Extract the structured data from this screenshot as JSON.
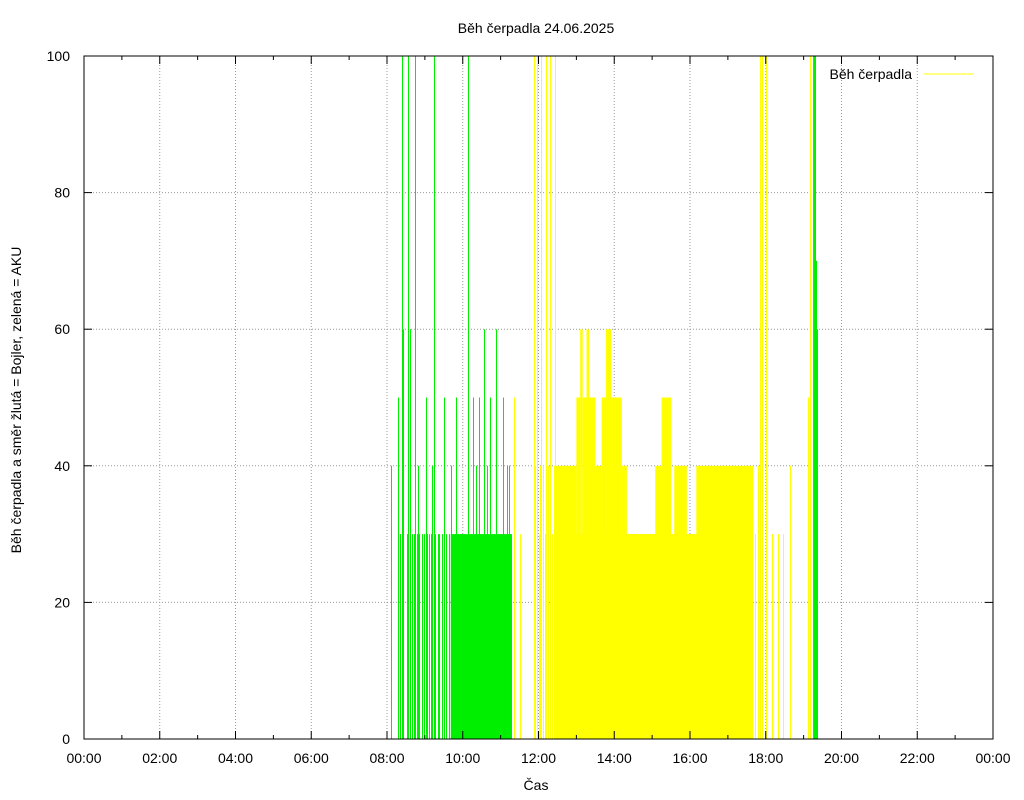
{
  "chart_data": {
    "type": "area",
    "title": "Běh čerpadla 24.06.2025",
    "xlabel": "Čas",
    "ylabel": "Běh čerpadla a směr žlutá = Bojler, zelená = AKU",
    "xlim": [
      0,
      1440
    ],
    "ylim": [
      0,
      100
    ],
    "x_units": "minutes since 00:00",
    "x_ticks": [
      {
        "v": 0,
        "label": "00:00"
      },
      {
        "v": 120,
        "label": "02:00"
      },
      {
        "v": 240,
        "label": "04:00"
      },
      {
        "v": 360,
        "label": "06:00"
      },
      {
        "v": 480,
        "label": "08:00"
      },
      {
        "v": 600,
        "label": "10:00"
      },
      {
        "v": 720,
        "label": "12:00"
      },
      {
        "v": 840,
        "label": "14:00"
      },
      {
        "v": 960,
        "label": "16:00"
      },
      {
        "v": 1080,
        "label": "18:00"
      },
      {
        "v": 1200,
        "label": "20:00"
      },
      {
        "v": 1320,
        "label": "22:00"
      },
      {
        "v": 1440,
        "label": "00:00"
      }
    ],
    "y_ticks": [
      {
        "v": 0,
        "label": "0"
      },
      {
        "v": 20,
        "label": "20"
      },
      {
        "v": 40,
        "label": "40"
      },
      {
        "v": 60,
        "label": "60"
      },
      {
        "v": 80,
        "label": "80"
      },
      {
        "v": 100,
        "label": "100"
      }
    ],
    "grid": true,
    "legend": {
      "position": "top-right",
      "entries": [
        {
          "label": "Běh čerpadla",
          "color": "#ffff00"
        }
      ]
    },
    "series": [
      {
        "color": "#00ee00",
        "spikes": [
          {
            "x": 487,
            "y": 40
          },
          {
            "x": 498,
            "y": 50
          },
          {
            "x": 500,
            "y": 30
          },
          {
            "x": 503,
            "y": 100
          },
          {
            "x": 505,
            "y": 60
          },
          {
            "x": 511,
            "y": 30
          },
          {
            "x": 514,
            "y": 100
          },
          {
            "x": 516,
            "y": 60
          },
          {
            "x": 519,
            "y": 30
          },
          {
            "x": 522,
            "y": 30
          },
          {
            "x": 524,
            "y": 100
          },
          {
            "x": 527,
            "y": 30
          },
          {
            "x": 529,
            "y": 40
          },
          {
            "x": 531,
            "y": 30
          },
          {
            "x": 535,
            "y": 30
          },
          {
            "x": 539,
            "y": 30
          },
          {
            "x": 542,
            "y": 50
          },
          {
            "x": 544,
            "y": 30
          },
          {
            "x": 547,
            "y": 30
          },
          {
            "x": 550,
            "y": 30
          },
          {
            "x": 552,
            "y": 40
          },
          {
            "x": 554,
            "y": 100
          },
          {
            "x": 556,
            "y": 30
          },
          {
            "x": 560,
            "y": 30
          },
          {
            "x": 563,
            "y": 30
          },
          {
            "x": 567,
            "y": 30
          },
          {
            "x": 570,
            "y": 50
          },
          {
            "x": 574,
            "y": 30
          },
          {
            "x": 578,
            "y": 30
          },
          {
            "x": 582,
            "y": 40
          },
          {
            "x": 587,
            "y": 30
          },
          {
            "x": 590,
            "y": 50
          },
          {
            "x": 593,
            "y": 30
          },
          {
            "x": 596,
            "y": 30
          },
          {
            "x": 599,
            "y": 30
          },
          {
            "x": 609,
            "y": 100
          },
          {
            "x": 616,
            "y": 50
          },
          {
            "x": 621,
            "y": 40
          },
          {
            "x": 625,
            "y": 50
          },
          {
            "x": 628,
            "y": 30
          },
          {
            "x": 634,
            "y": 60
          },
          {
            "x": 638,
            "y": 40
          },
          {
            "x": 643,
            "y": 50
          },
          {
            "x": 649,
            "y": 30
          },
          {
            "x": 652,
            "y": 60
          },
          {
            "x": 659,
            "y": 30
          },
          {
            "x": 663,
            "y": 50
          },
          {
            "x": 670,
            "y": 40
          },
          {
            "x": 673,
            "y": 40
          },
          {
            "x": 1156,
            "y": 100
          },
          {
            "x": 1158,
            "y": 100
          },
          {
            "x": 1159,
            "y": 70
          },
          {
            "x": 1161,
            "y": 60
          }
        ],
        "blocks": [
          {
            "x0": 581,
            "x1": 678,
            "y": 30
          },
          {
            "x0": 1155,
            "x1": 1158,
            "y": 100
          }
        ]
      },
      {
        "color": "#ffff00",
        "spikes": [
          {
            "x": 681,
            "y": 50
          },
          {
            "x": 691,
            "y": 30
          },
          {
            "x": 713,
            "y": 100
          },
          {
            "x": 715,
            "y": 40
          },
          {
            "x": 717,
            "y": 100
          },
          {
            "x": 720,
            "y": 30
          },
          {
            "x": 722,
            "y": 40
          },
          {
            "x": 724,
            "y": 100
          },
          {
            "x": 727,
            "y": 40
          },
          {
            "x": 730,
            "y": 30
          },
          {
            "x": 732,
            "y": 100
          },
          {
            "x": 735,
            "y": 40
          },
          {
            "x": 738,
            "y": 100
          },
          {
            "x": 741,
            "y": 30
          },
          {
            "x": 744,
            "y": 40
          },
          {
            "x": 746,
            "y": 100
          },
          {
            "x": 1063,
            "y": 30
          },
          {
            "x": 1067,
            "y": 40
          },
          {
            "x": 1071,
            "y": 100
          },
          {
            "x": 1074,
            "y": 100
          },
          {
            "x": 1081,
            "y": 100
          },
          {
            "x": 1090,
            "y": 30
          },
          {
            "x": 1100,
            "y": 30
          },
          {
            "x": 1108,
            "y": 30
          },
          {
            "x": 1119,
            "y": 40
          },
          {
            "x": 1147,
            "y": 50
          },
          {
            "x": 1150,
            "y": 100
          }
        ],
        "blocks": [
          {
            "x0": 746,
            "x1": 766,
            "y": 40
          },
          {
            "x0": 766,
            "x1": 780,
            "y": 40
          },
          {
            "x0": 780,
            "x1": 786,
            "y": 50
          },
          {
            "x0": 786,
            "x1": 790,
            "y": 60
          },
          {
            "x0": 790,
            "x1": 796,
            "y": 50
          },
          {
            "x0": 796,
            "x1": 800,
            "y": 60
          },
          {
            "x0": 800,
            "x1": 810,
            "y": 50
          },
          {
            "x0": 810,
            "x1": 820,
            "y": 40
          },
          {
            "x0": 820,
            "x1": 827,
            "y": 50
          },
          {
            "x0": 827,
            "x1": 835,
            "y": 60
          },
          {
            "x0": 835,
            "x1": 852,
            "y": 50
          },
          {
            "x0": 852,
            "x1": 860,
            "y": 40
          },
          {
            "x0": 860,
            "x1": 905,
            "y": 30
          },
          {
            "x0": 905,
            "x1": 915,
            "y": 40
          },
          {
            "x0": 915,
            "x1": 930,
            "y": 50
          },
          {
            "x0": 930,
            "x1": 935,
            "y": 30
          },
          {
            "x0": 935,
            "x1": 955,
            "y": 40
          },
          {
            "x0": 955,
            "x1": 970,
            "y": 30
          },
          {
            "x0": 970,
            "x1": 1060,
            "y": 40
          }
        ],
        "fill_below": [
          {
            "x0": 766,
            "x1": 1060,
            "y": 30
          }
        ]
      }
    ]
  }
}
